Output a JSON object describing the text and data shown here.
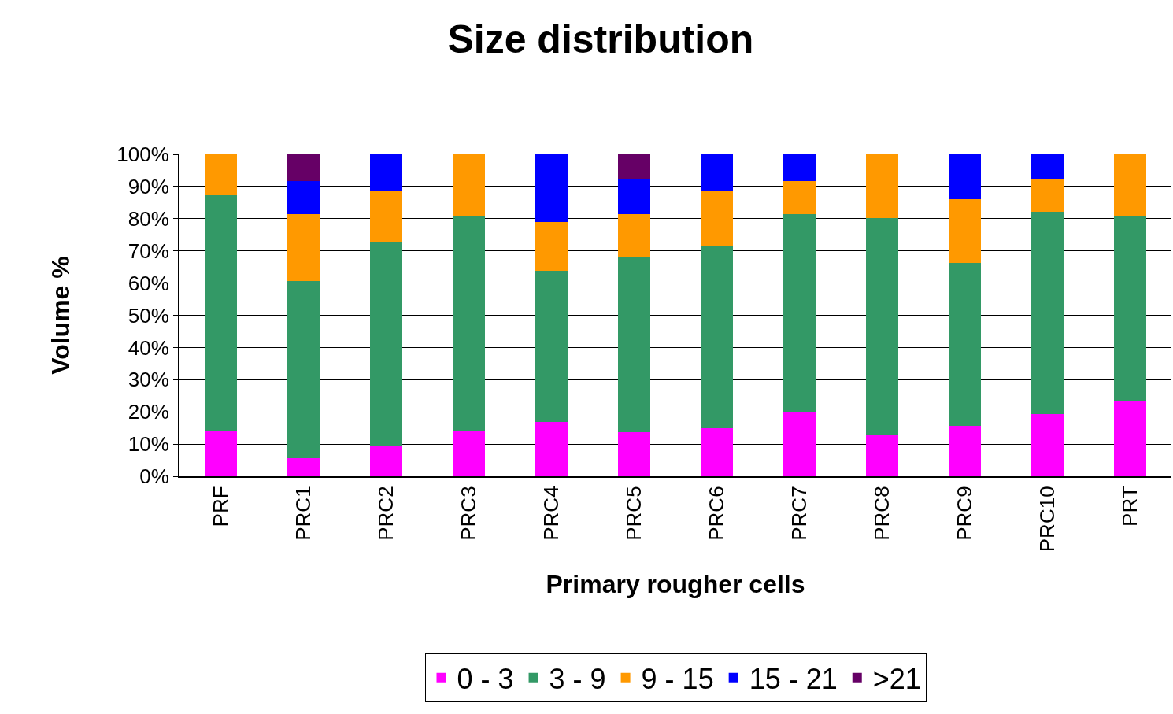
{
  "chart_data": {
    "type": "bar",
    "title": "Size distribution",
    "xlabel": "Primary rougher cells",
    "ylabel": "Volume %",
    "stacked": true,
    "categories": [
      "PRF",
      "PRC1",
      "PRC2",
      "PRC3",
      "PRC4",
      "PRC5",
      "PRC6",
      "PRC7",
      "PRC8",
      "PRC9",
      "PRC10",
      "PRT"
    ],
    "series": [
      {
        "name": "0 - 3",
        "color": "#ff00ff",
        "values": [
          14.3,
          5.6,
          9.4,
          14.3,
          16.9,
          13.8,
          14.9,
          20.1,
          13.0,
          15.7,
          19.3,
          23.2
        ]
      },
      {
        "name": "3 - 9",
        "color": "#339966",
        "values": [
          73.1,
          55.0,
          63.2,
          66.4,
          46.9,
          54.4,
          56.5,
          61.3,
          67.2,
          50.6,
          62.9,
          57.5
        ]
      },
      {
        "name": "9 - 15",
        "color": "#ff9900",
        "values": [
          12.6,
          20.8,
          15.9,
          19.3,
          15.2,
          13.2,
          17.1,
          10.3,
          19.8,
          19.8,
          10.0,
          19.3
        ]
      },
      {
        "name": "15 - 21",
        "color": "#0000ff",
        "values": [
          null,
          10.3,
          11.5,
          null,
          21.0,
          10.8,
          11.5,
          8.3,
          null,
          13.9,
          7.8,
          null
        ]
      },
      {
        "name": ">21",
        "color": "#660066",
        "values": [
          null,
          8.3,
          null,
          null,
          null,
          7.8,
          null,
          null,
          null,
          null,
          null,
          null
        ]
      }
    ],
    "ylim": [
      0,
      100
    ],
    "yticks": [
      {
        "value": 0,
        "label": "0%"
      },
      {
        "value": 10,
        "label": "10%"
      },
      {
        "value": 20,
        "label": "20%"
      },
      {
        "value": 30,
        "label": "30%"
      },
      {
        "value": 40,
        "label": "40%"
      },
      {
        "value": 50,
        "label": "50%"
      },
      {
        "value": 60,
        "label": "60%"
      },
      {
        "value": 70,
        "label": "70%"
      },
      {
        "value": 80,
        "label": "80%"
      },
      {
        "value": 90,
        "label": "90%"
      },
      {
        "value": 100,
        "label": "100%"
      }
    ],
    "grid": "y",
    "legend": "bottom"
  }
}
